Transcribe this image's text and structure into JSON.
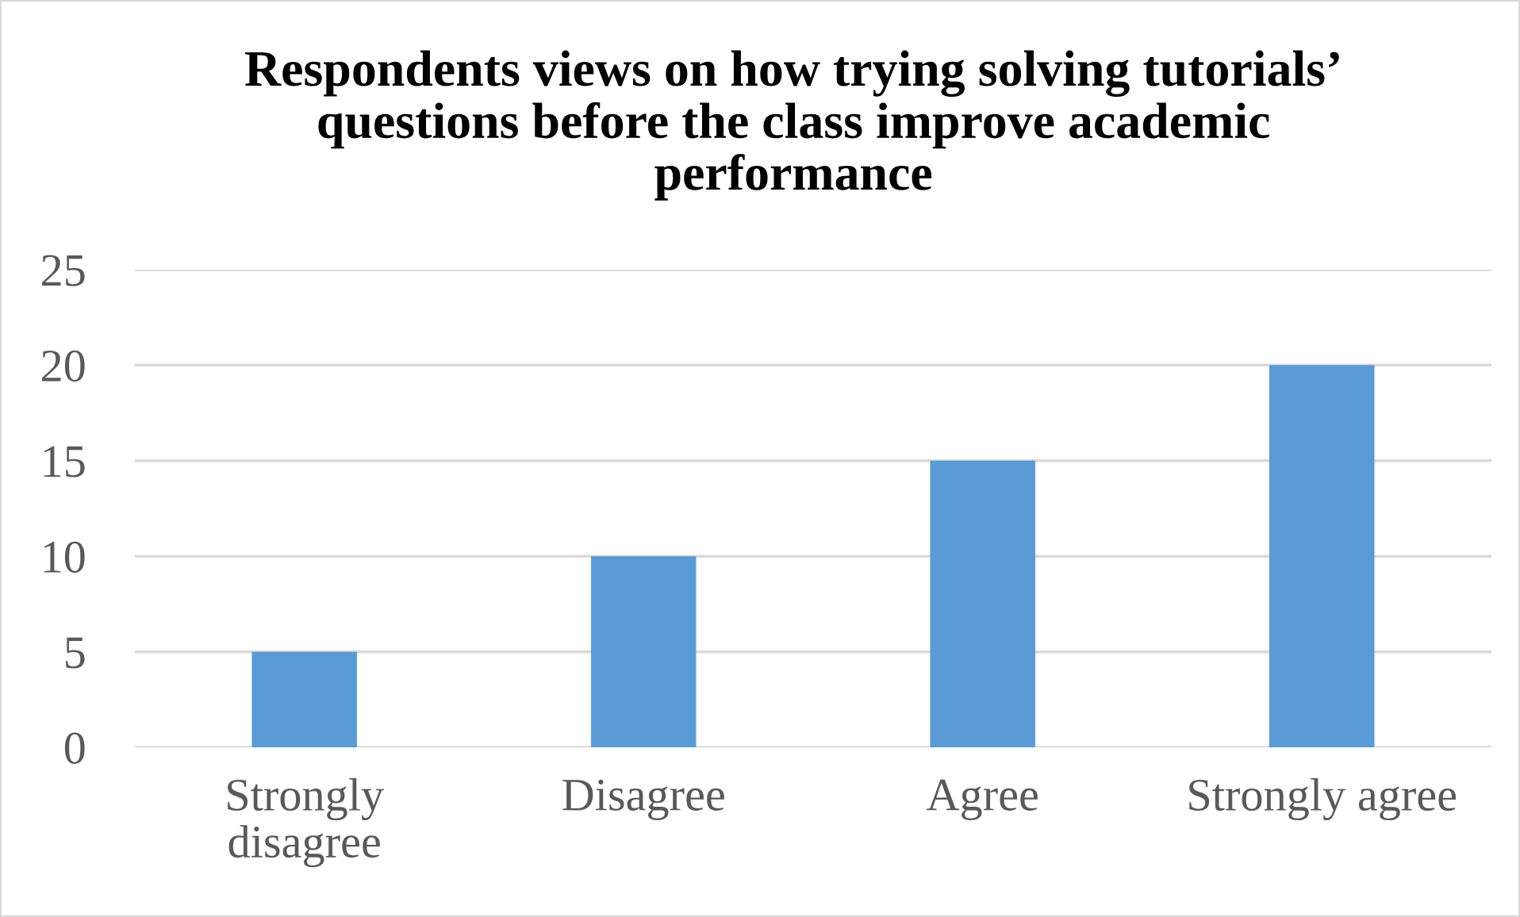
{
  "chart_data": {
    "type": "bar",
    "title": "Respondents views on how trying solving tutorials’\nquestions before the class improve academic\nperformance",
    "categories": [
      "Strongly disagree",
      "Disagree",
      "Agree",
      "Strongly agree"
    ],
    "values": [
      5,
      10,
      15,
      20
    ],
    "color": "#5b9bd5",
    "ylim": [
      0,
      25
    ],
    "yticks": [
      0,
      5,
      10,
      15,
      20,
      25
    ],
    "grid": "y"
  }
}
